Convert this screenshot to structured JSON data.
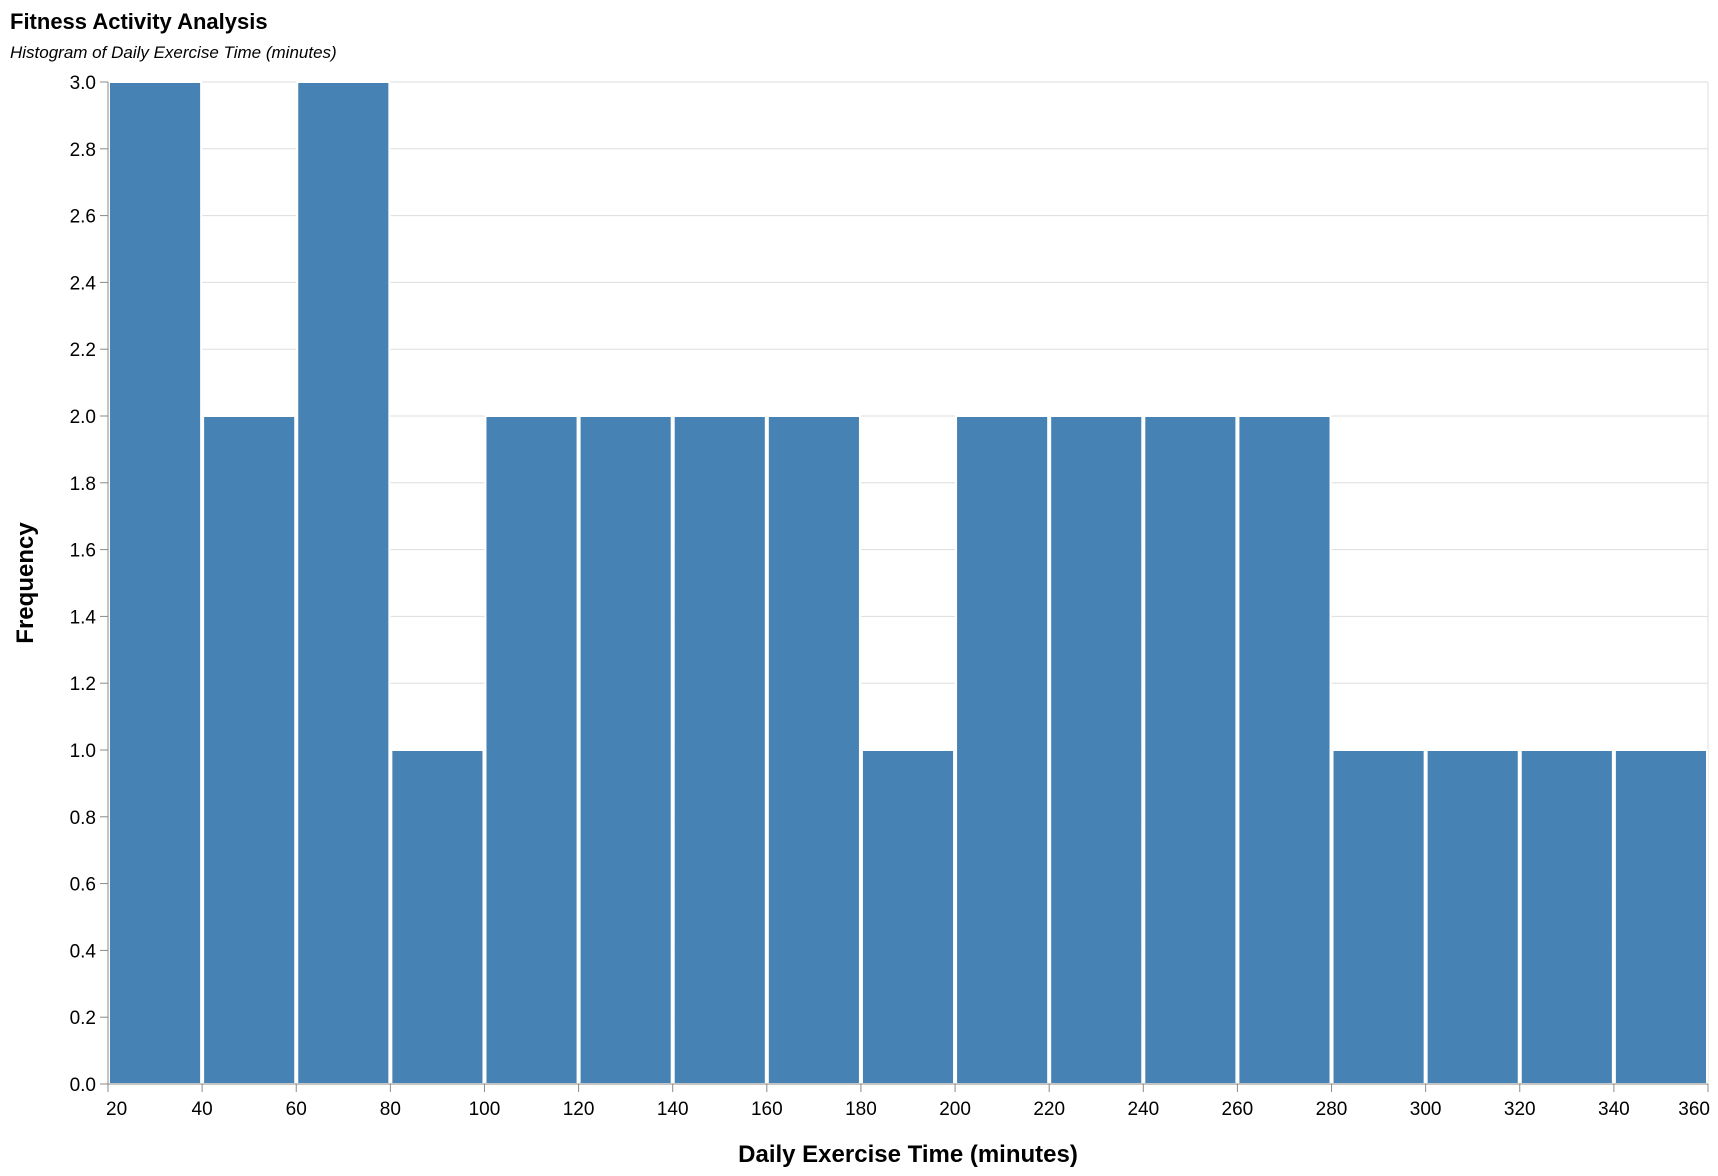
{
  "chart_data": {
    "type": "bar",
    "title": "Fitness Activity Analysis",
    "subtitle": "Histogram of Daily Exercise Time (minutes)",
    "xlabel": "Daily Exercise Time (minutes)",
    "ylabel": "Frequency",
    "bin_width": 20,
    "bins": [
      {
        "start": 20,
        "end": 40,
        "count": 3
      },
      {
        "start": 40,
        "end": 60,
        "count": 2
      },
      {
        "start": 60,
        "end": 80,
        "count": 3
      },
      {
        "start": 80,
        "end": 100,
        "count": 1
      },
      {
        "start": 100,
        "end": 120,
        "count": 2
      },
      {
        "start": 120,
        "end": 140,
        "count": 2
      },
      {
        "start": 140,
        "end": 160,
        "count": 2
      },
      {
        "start": 160,
        "end": 180,
        "count": 2
      },
      {
        "start": 180,
        "end": 200,
        "count": 1
      },
      {
        "start": 200,
        "end": 220,
        "count": 2
      },
      {
        "start": 220,
        "end": 240,
        "count": 2
      },
      {
        "start": 240,
        "end": 260,
        "count": 2
      },
      {
        "start": 260,
        "end": 280,
        "count": 2
      },
      {
        "start": 280,
        "end": 300,
        "count": 1
      },
      {
        "start": 300,
        "end": 320,
        "count": 1
      },
      {
        "start": 320,
        "end": 340,
        "count": 1
      },
      {
        "start": 340,
        "end": 360,
        "count": 1
      }
    ],
    "xlim": [
      20,
      360
    ],
    "ylim": [
      0,
      3
    ],
    "x_ticks": [
      "20",
      "40",
      "60",
      "80",
      "100",
      "120",
      "140",
      "160",
      "180",
      "200",
      "220",
      "240",
      "260",
      "280",
      "300",
      "320",
      "340",
      "360"
    ],
    "y_ticks": [
      "0.0",
      "0.2",
      "0.4",
      "0.6",
      "0.8",
      "1.0",
      "1.2",
      "1.4",
      "1.6",
      "1.8",
      "2.0",
      "2.2",
      "2.4",
      "2.6",
      "2.8",
      "3.0"
    ],
    "grid": true,
    "legend": "none",
    "bar_color": "#4682b4"
  }
}
